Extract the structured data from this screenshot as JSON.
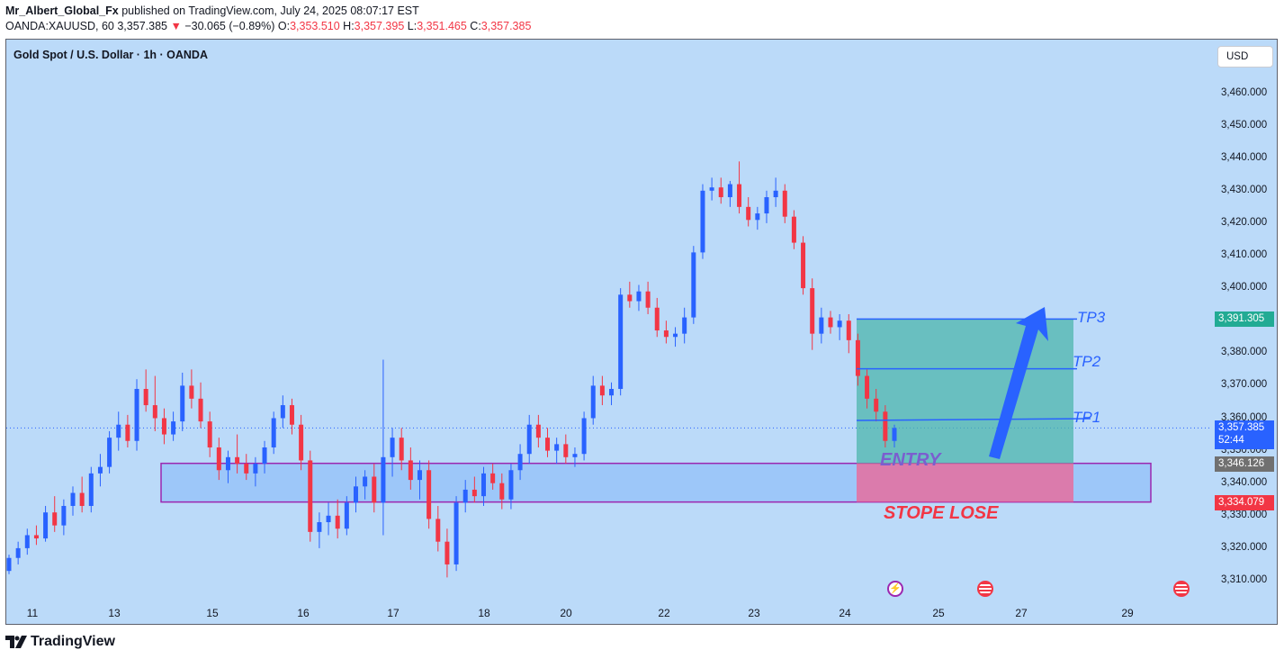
{
  "header": {
    "author": "Mr_Albert_Global_Fx",
    "published_text": "published on TradingView.com, July 24, 2025 08:07:17 EST",
    "symbol_line": "OANDA:XAUUSD, 60",
    "last": "3,357.385",
    "change": "−30.065 (−0.89%)",
    "o_label": "O:",
    "o_value": "3,353.510",
    "h_label": "H:",
    "h_value": "3,357.395",
    "l_label": "L:",
    "l_value": "3,351.465",
    "c_label": "C:",
    "c_value": "3,357.385"
  },
  "chart_title": "Gold Spot / U.S. Dollar · 1h · OANDA",
  "currency_button": "USD",
  "brand": "TradingView",
  "colors": {
    "background": "#bbdaf9",
    "up": "#2962ff",
    "down": "#f23645",
    "zone_border": "#9c27b0",
    "target_zone": "#4db6ac",
    "stop_zone": "#f06292"
  },
  "events": [
    "lightning-event-icon",
    "us-flag-event-icon",
    "us-flag-event-icon"
  ],
  "chart_data": {
    "type": "candlestick",
    "y_axis": {
      "ticks": [
        "3,460.000",
        "3,450.000",
        "3,440.000",
        "3,430.000",
        "3,420.000",
        "3,410.000",
        "3,400.000",
        "3,390.000",
        "3,380.000",
        "3,370.000",
        "3,360.000",
        "3,350.000",
        "3,340.000",
        "3,330.000",
        "3,320.000",
        "3,310.000"
      ],
      "range": [
        3305,
        3468
      ]
    },
    "x_axis": {
      "ticks": [
        "11",
        "13",
        "15",
        "16",
        "17",
        "18",
        "20",
        "22",
        "23",
        "24",
        "25",
        "27",
        "29"
      ]
    },
    "price_labels": {
      "tp": "3,391.305",
      "last": "3,357.385",
      "countdown": "52:44",
      "entry": "3,346.126",
      "stop": "3,334.079"
    },
    "annotations": {
      "tp3": "TP3",
      "tp2": "TP2",
      "tp1": "TP1",
      "entry": "ENTRY",
      "stop": "STOPE LOSE"
    },
    "levels": {
      "tp3": 3390.5,
      "tp2": 3375.2,
      "tp1": 3359.6,
      "zone_top": 3346.1,
      "zone_bottom": 3334.2
    },
    "candles": [
      [
        3313,
        3318,
        3312,
        3317
      ],
      [
        3317,
        3322,
        3315,
        3320
      ],
      [
        3320,
        3326,
        3318,
        3324
      ],
      [
        3324,
        3327,
        3321,
        3323
      ],
      [
        3323,
        3333,
        3322,
        3331
      ],
      [
        3331,
        3336,
        3325,
        3327
      ],
      [
        3327,
        3335,
        3324,
        3333
      ],
      [
        3333,
        3339,
        3330,
        3337
      ],
      [
        3337,
        3342,
        3331,
        3333
      ],
      [
        3333,
        3345,
        3331,
        3343
      ],
      [
        3343,
        3349,
        3339,
        3345
      ],
      [
        3345,
        3356,
        3343,
        3354
      ],
      [
        3354,
        3362,
        3350,
        3358
      ],
      [
        3358,
        3361,
        3351,
        3353
      ],
      [
        3353,
        3372,
        3350,
        3369
      ],
      [
        3369,
        3375,
        3362,
        3364
      ],
      [
        3364,
        3373,
        3356,
        3360
      ],
      [
        3360,
        3363,
        3352,
        3355
      ],
      [
        3355,
        3362,
        3353,
        3359
      ],
      [
        3359,
        3374,
        3356,
        3370
      ],
      [
        3370,
        3375,
        3363,
        3366
      ],
      [
        3366,
        3371,
        3357,
        3359
      ],
      [
        3359,
        3362,
        3348,
        3351
      ],
      [
        3351,
        3354,
        3341,
        3344
      ],
      [
        3344,
        3350,
        3340,
        3348
      ],
      [
        3348,
        3355,
        3343,
        3346
      ],
      [
        3346,
        3349,
        3341,
        3343
      ],
      [
        3343,
        3348,
        3339,
        3346
      ],
      [
        3346,
        3353,
        3343,
        3351
      ],
      [
        3351,
        3362,
        3349,
        3360
      ],
      [
        3360,
        3367,
        3357,
        3364
      ],
      [
        3364,
        3366,
        3355,
        3358
      ],
      [
        3358,
        3361,
        3344,
        3347
      ],
      [
        3347,
        3350,
        3322,
        3325
      ],
      [
        3325,
        3331,
        3320,
        3328
      ],
      [
        3328,
        3334,
        3324,
        3330
      ],
      [
        3330,
        3335,
        3323,
        3326
      ],
      [
        3326,
        3336,
        3324,
        3334
      ],
      [
        3334,
        3342,
        3331,
        3339
      ],
      [
        3339,
        3344,
        3335,
        3342
      ],
      [
        3342,
        3346,
        3331,
        3334
      ],
      [
        3334,
        3378,
        3324,
        3348
      ],
      [
        3348,
        3357,
        3342,
        3354
      ],
      [
        3354,
        3357,
        3344,
        3347
      ],
      [
        3347,
        3351,
        3338,
        3341
      ],
      [
        3341,
        3347,
        3335,
        3344
      ],
      [
        3344,
        3347,
        3326,
        3329
      ],
      [
        3329,
        3333,
        3319,
        3322
      ],
      [
        3322,
        3326,
        3311,
        3315
      ],
      [
        3315,
        3336,
        3313,
        3334
      ],
      [
        3334,
        3341,
        3331,
        3338
      ],
      [
        3338,
        3342,
        3334,
        3336
      ],
      [
        3336,
        3345,
        3333,
        3343
      ],
      [
        3343,
        3346,
        3338,
        3340
      ],
      [
        3340,
        3343,
        3332,
        3335
      ],
      [
        3335,
        3346,
        3332,
        3344
      ],
      [
        3344,
        3352,
        3341,
        3349
      ],
      [
        3349,
        3361,
        3346,
        3358
      ],
      [
        3358,
        3361,
        3351,
        3354
      ],
      [
        3354,
        3357,
        3348,
        3350
      ],
      [
        3350,
        3354,
        3346,
        3352
      ],
      [
        3352,
        3355,
        3346,
        3348
      ],
      [
        3348,
        3351,
        3345,
        3349
      ],
      [
        3349,
        3362,
        3347,
        3360
      ],
      [
        3360,
        3373,
        3358,
        3370
      ],
      [
        3370,
        3373,
        3364,
        3367
      ],
      [
        3367,
        3371,
        3364,
        3369
      ],
      [
        3369,
        3400,
        3367,
        3398
      ],
      [
        3398,
        3402,
        3394,
        3396
      ],
      [
        3396,
        3401,
        3393,
        3399
      ],
      [
        3399,
        3402,
        3392,
        3394
      ],
      [
        3394,
        3397,
        3385,
        3387
      ],
      [
        3387,
        3390,
        3383,
        3385
      ],
      [
        3385,
        3388,
        3382,
        3386
      ],
      [
        3386,
        3394,
        3383,
        3391
      ],
      [
        3391,
        3413,
        3389,
        3411
      ],
      [
        3411,
        3432,
        3409,
        3430
      ],
      [
        3430,
        3434,
        3427,
        3431
      ],
      [
        3431,
        3434,
        3426,
        3428
      ],
      [
        3428,
        3433,
        3425,
        3432
      ],
      [
        3432,
        3439,
        3423,
        3425
      ],
      [
        3425,
        3428,
        3419,
        3421
      ],
      [
        3421,
        3425,
        3418,
        3423
      ],
      [
        3423,
        3430,
        3420,
        3428
      ],
      [
        3428,
        3434,
        3425,
        3430
      ],
      [
        3430,
        3432,
        3420,
        3422
      ],
      [
        3422,
        3424,
        3412,
        3414
      ],
      [
        3414,
        3416,
        3398,
        3400
      ],
      [
        3400,
        3403,
        3381,
        3386
      ],
      [
        3386,
        3394,
        3383,
        3391
      ],
      [
        3391,
        3393,
        3386,
        3388
      ],
      [
        3388,
        3392,
        3384,
        3390
      ],
      [
        3390,
        3392,
        3380,
        3384
      ],
      [
        3384,
        3386,
        3370,
        3373
      ],
      [
        3373,
        3375,
        3363,
        3366
      ],
      [
        3366,
        3369,
        3359,
        3362
      ],
      [
        3362,
        3364,
        3351,
        3353
      ],
      [
        3353,
        3358,
        3351,
        3357
      ]
    ]
  }
}
